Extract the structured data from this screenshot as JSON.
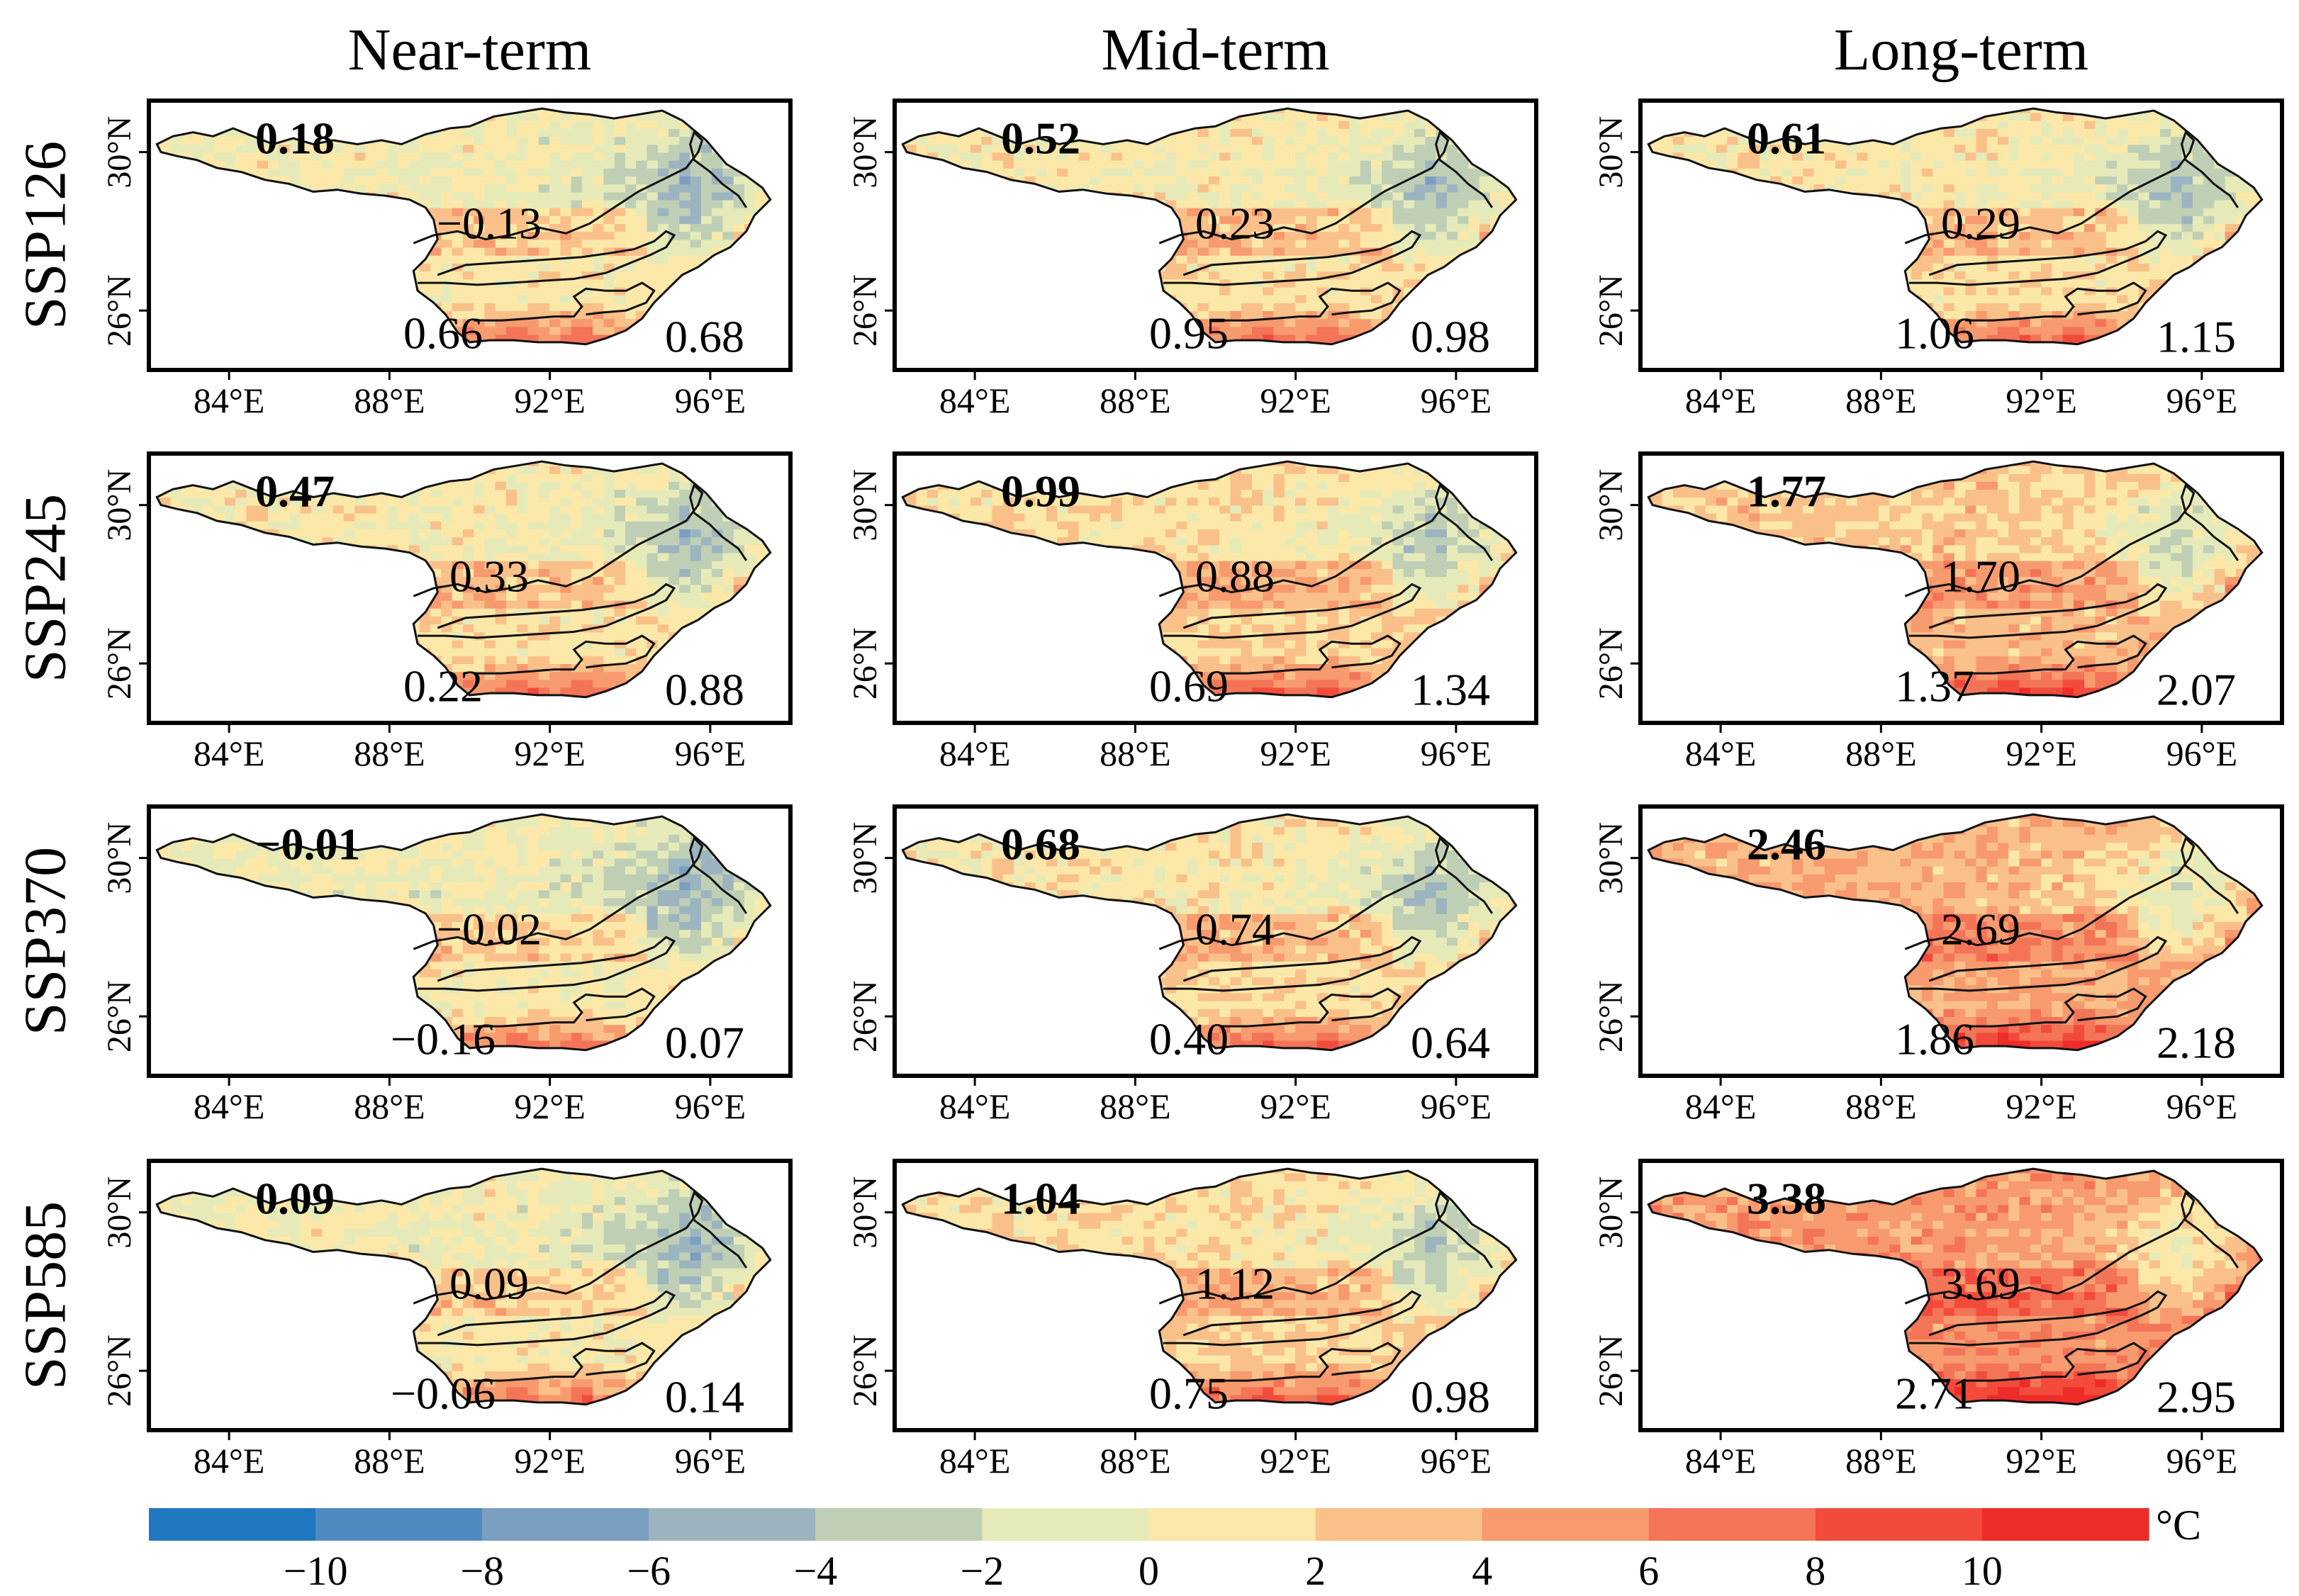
{
  "chart_data": {
    "type": "heatmap",
    "title": "",
    "column_titles": [
      "Near-term",
      "Mid-term",
      "Long-term"
    ],
    "row_titles": [
      "SSP126",
      "SSP245",
      "SSP370",
      "SSP585"
    ],
    "x_ticks": [
      "84°E",
      "88°E",
      "92°E",
      "96°E"
    ],
    "y_ticks": [
      "30°N",
      "26°N"
    ],
    "colorbar": {
      "unit": "°C",
      "tick_labels": [
        "−10",
        "−8",
        "−6",
        "−4",
        "−2",
        "0",
        "2",
        "4",
        "6",
        "8",
        "10"
      ],
      "tick_values": [
        -10,
        -8,
        -6,
        -4,
        -2,
        0,
        2,
        4,
        6,
        8,
        10
      ],
      "range": [
        -12,
        12
      ],
      "colors": [
        "#1f78c0",
        "#4f8ac0",
        "#7a9fc0",
        "#9cb4c0",
        "#bfcfb5",
        "#e6eab9",
        "#fbe8a8",
        "#fac08a",
        "#f79a6e",
        "#f47458",
        "#f24b3c",
        "#ee2c28"
      ]
    },
    "panels": [
      {
        "row": "SSP126",
        "col": "Near-term",
        "shift": 0.18,
        "labels": [
          {
            "value": "0.18",
            "bold": true
          },
          {
            "value": "−0.13",
            "bold": false
          },
          {
            "value": "0.66",
            "bold": false
          },
          {
            "value": "0.68",
            "bold": false
          }
        ]
      },
      {
        "row": "SSP126",
        "col": "Mid-term",
        "shift": 0.52,
        "labels": [
          {
            "value": "0.52",
            "bold": true
          },
          {
            "value": "0.23",
            "bold": false
          },
          {
            "value": "0.95",
            "bold": false
          },
          {
            "value": "0.98",
            "bold": false
          }
        ]
      },
      {
        "row": "SSP126",
        "col": "Long-term",
        "shift": 0.61,
        "labels": [
          {
            "value": "0.61",
            "bold": true
          },
          {
            "value": "0.29",
            "bold": false
          },
          {
            "value": "1.06",
            "bold": false
          },
          {
            "value": "1.15",
            "bold": false
          }
        ]
      },
      {
        "row": "SSP245",
        "col": "Near-term",
        "shift": 0.47,
        "labels": [
          {
            "value": "0.47",
            "bold": true
          },
          {
            "value": "0.33",
            "bold": false
          },
          {
            "value": "0.22",
            "bold": false
          },
          {
            "value": "0.88",
            "bold": false
          }
        ]
      },
      {
        "row": "SSP245",
        "col": "Mid-term",
        "shift": 0.99,
        "labels": [
          {
            "value": "0.99",
            "bold": true
          },
          {
            "value": "0.88",
            "bold": false
          },
          {
            "value": "0.69",
            "bold": false
          },
          {
            "value": "1.34",
            "bold": false
          }
        ]
      },
      {
        "row": "SSP245",
        "col": "Long-term",
        "shift": 1.77,
        "labels": [
          {
            "value": "1.77",
            "bold": true
          },
          {
            "value": "1.70",
            "bold": false
          },
          {
            "value": "1.37",
            "bold": false
          },
          {
            "value": "2.07",
            "bold": false
          }
        ]
      },
      {
        "row": "SSP370",
        "col": "Near-term",
        "shift": -0.01,
        "labels": [
          {
            "value": "−0.01",
            "bold": true
          },
          {
            "value": "−0.02",
            "bold": false
          },
          {
            "value": "−0.16",
            "bold": false
          },
          {
            "value": "0.07",
            "bold": false
          }
        ]
      },
      {
        "row": "SSP370",
        "col": "Mid-term",
        "shift": 0.68,
        "labels": [
          {
            "value": "0.68",
            "bold": true
          },
          {
            "value": "0.74",
            "bold": false
          },
          {
            "value": "0.40",
            "bold": false
          },
          {
            "value": "0.64",
            "bold": false
          }
        ]
      },
      {
        "row": "SSP370",
        "col": "Long-term",
        "shift": 2.46,
        "labels": [
          {
            "value": "2.46",
            "bold": true
          },
          {
            "value": "2.69",
            "bold": false
          },
          {
            "value": "1.86",
            "bold": false
          },
          {
            "value": "2.18",
            "bold": false
          }
        ]
      },
      {
        "row": "SSP585",
        "col": "Near-term",
        "shift": 0.09,
        "labels": [
          {
            "value": "0.09",
            "bold": true
          },
          {
            "value": "0.09",
            "bold": false
          },
          {
            "value": "−0.06",
            "bold": false
          },
          {
            "value": "0.14",
            "bold": false
          }
        ]
      },
      {
        "row": "SSP585",
        "col": "Mid-term",
        "shift": 1.04,
        "labels": [
          {
            "value": "1.04",
            "bold": true
          },
          {
            "value": "1.12",
            "bold": false
          },
          {
            "value": "0.75",
            "bold": false
          },
          {
            "value": "0.98",
            "bold": false
          }
        ]
      },
      {
        "row": "SSP585",
        "col": "Long-term",
        "shift": 3.38,
        "labels": [
          {
            "value": "3.38",
            "bold": true
          },
          {
            "value": "3.69",
            "bold": false
          },
          {
            "value": "2.71",
            "bold": false
          },
          {
            "value": "2.95",
            "bold": false
          }
        ]
      }
    ]
  }
}
